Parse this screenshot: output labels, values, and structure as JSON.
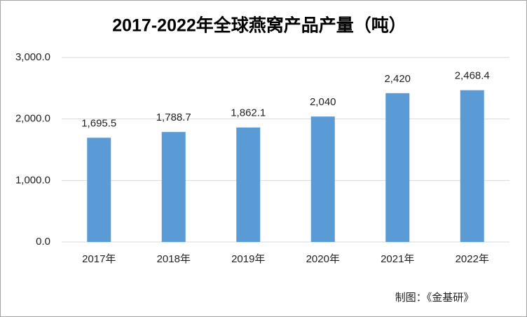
{
  "chart_data": {
    "type": "bar",
    "title": "2017-2022年全球燕窝产品产量（吨）",
    "categories": [
      "2017年",
      "2018年",
      "2019年",
      "2020年",
      "2021年",
      "2022年"
    ],
    "values": [
      1695.5,
      1788.7,
      1862.1,
      2040,
      2420,
      2468.4
    ],
    "value_labels": [
      "1,695.5",
      "1,788.7",
      "1,862.1",
      "2,040",
      "2,420",
      "2,468.4"
    ],
    "color": "#5b9bd5",
    "ylim": [
      0,
      3000
    ],
    "yticks": [
      {
        "value": 0,
        "label": "0.0"
      },
      {
        "value": 1000,
        "label": "1,000.0"
      },
      {
        "value": 2000,
        "label": "2,000.0"
      },
      {
        "value": 3000,
        "label": "3,000.0"
      }
    ],
    "grid": true,
    "source": "制图：《金基研》"
  }
}
